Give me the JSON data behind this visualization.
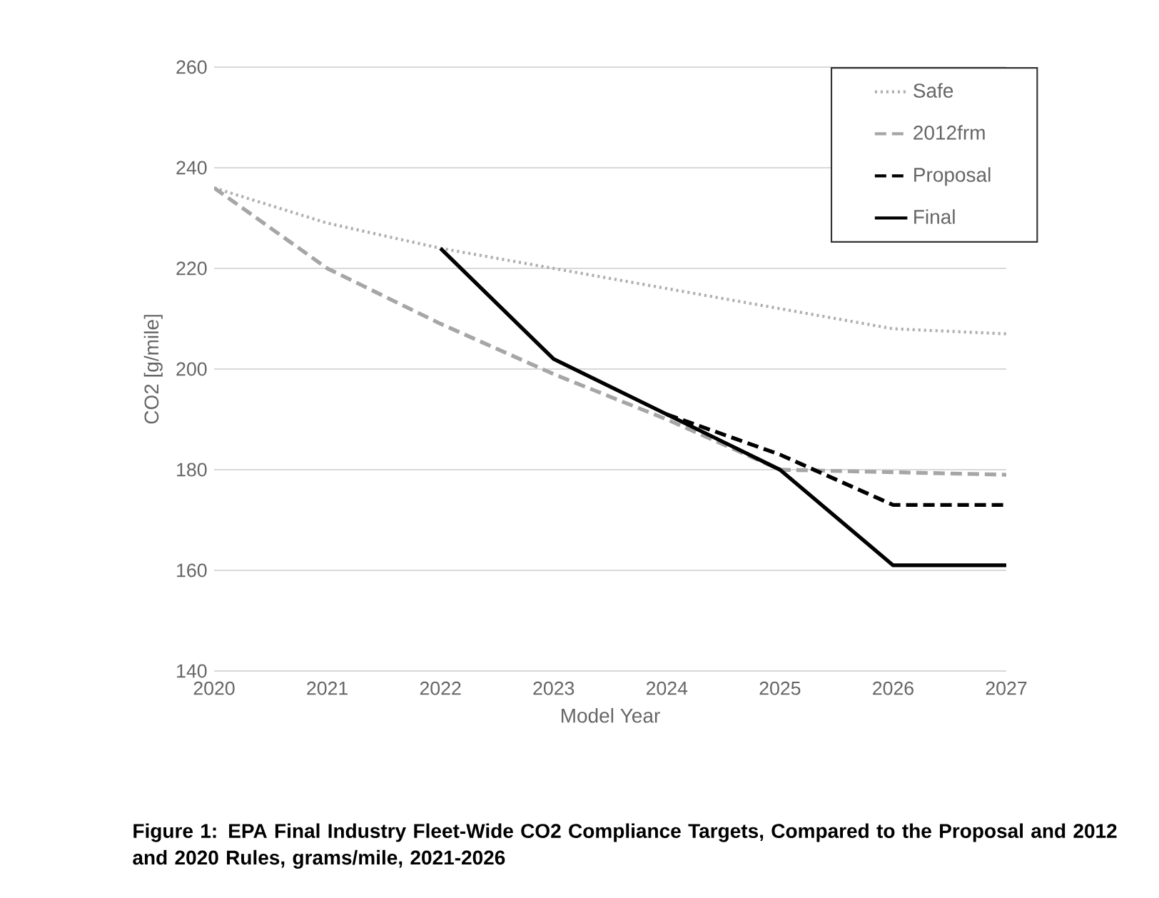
{
  "chart_data": {
    "type": "line",
    "xlabel": "Model Year",
    "ylabel": "CO2 [g/mile]",
    "xlim": [
      2020,
      2027
    ],
    "xticks": [
      2020,
      2021,
      2022,
      2023,
      2024,
      2025,
      2026,
      2027
    ],
    "ylim": [
      140,
      260
    ],
    "yticks": [
      140,
      160,
      180,
      200,
      220,
      240,
      260
    ],
    "grid": "y",
    "legend": "top right",
    "marker": "none",
    "series": [
      {
        "name": "Safe",
        "color": "#b0b0b0",
        "line_style": "dotted",
        "x": [
          2020,
          2021,
          2022,
          2023,
          2024,
          2025,
          2026,
          2027
        ],
        "values": [
          236,
          229,
          224,
          220,
          216,
          212,
          208,
          207
        ]
      },
      {
        "name": "2012frm",
        "color": "#a6a6a6",
        "line_style": "dashed",
        "x": [
          2020,
          2021,
          2022,
          2023,
          2024,
          2025,
          2026,
          2027
        ],
        "values": [
          236,
          220,
          209,
          199,
          190,
          180,
          179.5,
          179
        ]
      },
      {
        "name": "Proposal",
        "color": "#000000",
        "line_style": "dashed",
        "x": [
          2024,
          2025,
          2026,
          2027
        ],
        "values": [
          191,
          183,
          173,
          173
        ]
      },
      {
        "name": "Final",
        "color": "#000000",
        "line_style": "solid",
        "x": [
          2022,
          2023,
          2024,
          2025,
          2026,
          2027
        ],
        "values": [
          224,
          202,
          191,
          180,
          161,
          161
        ]
      }
    ],
    "annotations": [
      "Figure 1: EPA Final Industry Fleet-Wide CO2 Compliance Targets, Compared to the Proposal and 2012 and 2020 Rules, grams/mile, 2021-2026"
    ]
  }
}
